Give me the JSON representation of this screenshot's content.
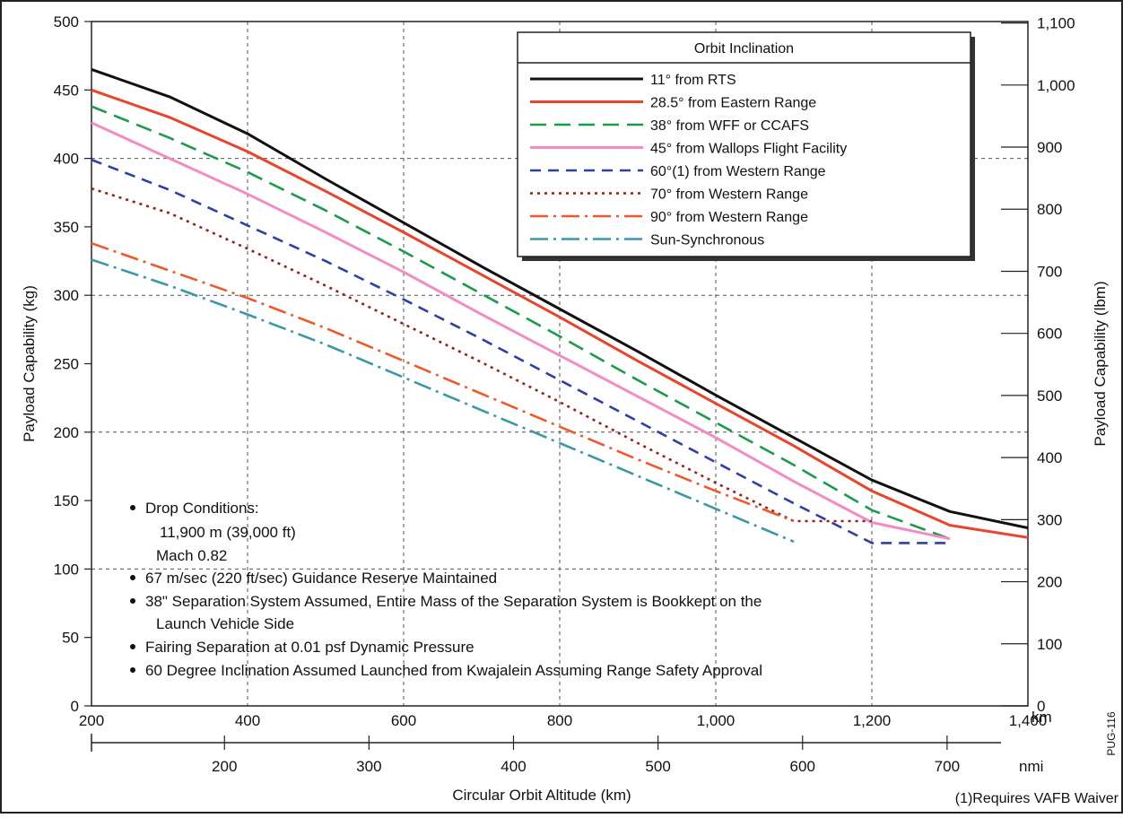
{
  "chart_data": {
    "type": "line",
    "title": "",
    "xlabel": "Circular Orbit Altitude (km)",
    "x_unit": "km",
    "x2_unit": "nmi",
    "ylabel": "Payload Capability (kg)",
    "ylabel_right": "Payload Capability (lbm)",
    "xlim": [
      200,
      1400
    ],
    "ylim": [
      0,
      500
    ],
    "y2lim": [
      0,
      1102.3
    ],
    "grid": true,
    "legend_position": "top-right",
    "x_ticks": [
      "200",
      "400",
      "600",
      "800",
      "1,000",
      "1,200",
      "1,400"
    ],
    "x_tick_values": [
      200,
      400,
      600,
      800,
      1000,
      1200,
      1400
    ],
    "x2_ticks": [
      "200",
      "300",
      "400",
      "500",
      "600",
      "700"
    ],
    "x2_tick_values": [
      200,
      300,
      400,
      500,
      600,
      700
    ],
    "y_ticks": [
      "0",
      "50",
      "100",
      "150",
      "200",
      "250",
      "300",
      "350",
      "400",
      "450",
      "500"
    ],
    "y_tick_values": [
      0,
      50,
      100,
      150,
      200,
      250,
      300,
      350,
      400,
      450,
      500
    ],
    "y2_ticks": [
      "0",
      "100",
      "200",
      "300",
      "400",
      "500",
      "600",
      "700",
      "800",
      "900",
      "1,000",
      "1,100"
    ],
    "y2_tick_values": [
      0,
      100,
      200,
      300,
      400,
      500,
      600,
      700,
      800,
      900,
      1000,
      1100
    ],
    "legend_title": "Orbit Inclination",
    "series": [
      {
        "name": "11° from RTS",
        "color": "#111111",
        "dash": "solid",
        "x": [
          200,
          300,
          400,
          500,
          600,
          700,
          800,
          900,
          1000,
          1100,
          1200,
          1300,
          1400
        ],
        "y": [
          465,
          445,
          418,
          385,
          353,
          321,
          290,
          259,
          227,
          196,
          165,
          142,
          130
        ]
      },
      {
        "name": "28.5° from Eastern Range",
        "color": "#e8452c",
        "dash": "solid",
        "x": [
          200,
          300,
          400,
          500,
          600,
          700,
          800,
          900,
          1000,
          1100,
          1200,
          1300,
          1400
        ],
        "y": [
          450,
          430,
          405,
          376,
          346,
          315,
          284,
          252,
          221,
          190,
          157,
          132,
          123
        ]
      },
      {
        "name": "38° from WFF or CCAFS",
        "color": "#1a9b4b",
        "dash": "long-dash",
        "x": [
          200,
          300,
          400,
          500,
          600,
          700,
          800,
          900,
          1000,
          1100,
          1200,
          1300
        ],
        "y": [
          438,
          415,
          390,
          362,
          332,
          301,
          270,
          238,
          207,
          176,
          143,
          122
        ]
      },
      {
        "name": "45° from Wallops Flight Facility",
        "color": "#f28cc2",
        "dash": "solid",
        "x": [
          200,
          300,
          400,
          500,
          600,
          700,
          800,
          900,
          1000,
          1100,
          1200,
          1300
        ],
        "y": [
          426,
          400,
          374,
          346,
          317,
          286,
          256,
          226,
          196,
          164,
          134,
          122
        ]
      },
      {
        "name": "60°(1) from Western Range",
        "color": "#2e3fa8",
        "dash": "dash",
        "x": [
          200,
          300,
          400,
          500,
          600,
          700,
          800,
          900,
          1000,
          1100,
          1200,
          1300
        ],
        "y": [
          399,
          377,
          351,
          325,
          297,
          268,
          238,
          208,
          178,
          148,
          119,
          119
        ]
      },
      {
        "name": "70° from Western Range",
        "color": "#9b1c1c",
        "dash": "dot",
        "x": [
          200,
          300,
          400,
          500,
          600,
          700,
          800,
          900,
          1000,
          1100,
          1200
        ],
        "y": [
          378,
          360,
          334,
          307,
          279,
          251,
          222,
          192,
          163,
          135,
          135
        ]
      },
      {
        "name": "90° from Western Range",
        "color": "#f0582a",
        "dash": "dash-dot",
        "x": [
          200,
          300,
          400,
          500,
          600,
          700,
          800,
          900,
          1000,
          1100
        ],
        "y": [
          338,
          318,
          298,
          276,
          252,
          228,
          204,
          180,
          157,
          135
        ]
      },
      {
        "name": "Sun-Synchronous",
        "color": "#3a98a8",
        "dash": "dash-dot",
        "x": [
          200,
          300,
          400,
          500,
          600,
          700,
          800,
          900,
          1000,
          1100
        ],
        "y": [
          326,
          307,
          286,
          264,
          240,
          216,
          192,
          168,
          144,
          120
        ]
      }
    ],
    "notes": [
      "Drop Conditions:",
      "11,900 m (39,000 ft)",
      "Mach 0.82",
      "67 m/sec (220 ft/sec) Guidance Reserve Maintained",
      "38\" Separation System Assumed, Entire Mass of the Separation System is Bookkept on the",
      "Launch Vehicle Side",
      "Fairing Separation at 0.01 psf Dynamic Pressure",
      "60 Degree Inclination Assumed Launched from Kwajalein Assuming Range Safety Approval"
    ],
    "footnote": "(1)Requires VAFB Waiver",
    "figure_id": "PUG-116"
  }
}
